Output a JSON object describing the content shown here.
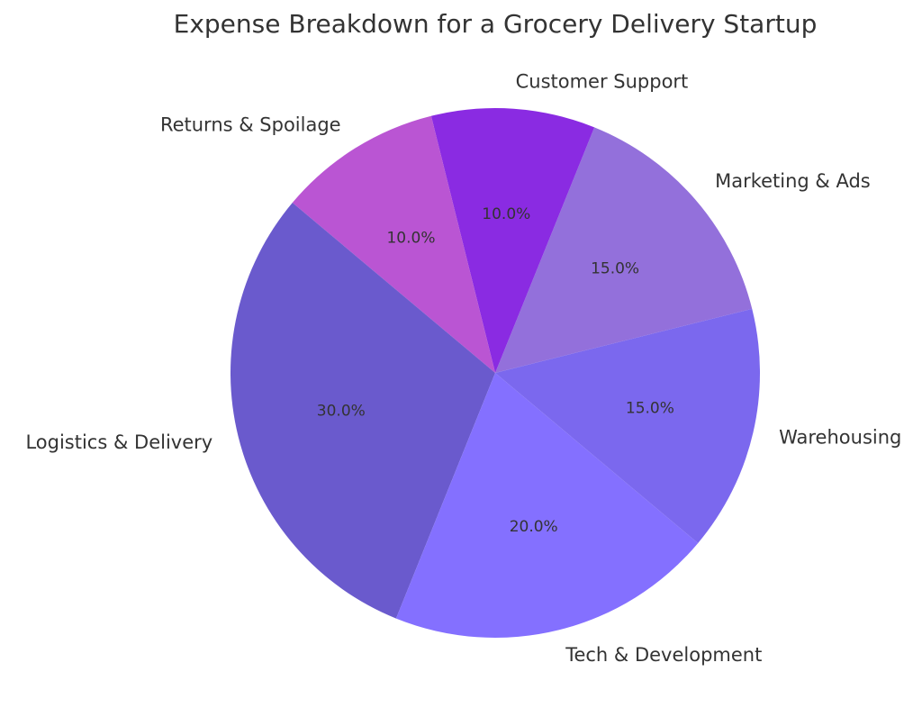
{
  "chart_data": {
    "type": "pie",
    "title": "Expense Breakdown for a Grocery Delivery Startup",
    "categories": [
      "Marketing & Ads",
      "Customer Support",
      "Returns & Spoilage",
      "Logistics & Delivery",
      "Tech & Development",
      "Warehousing"
    ],
    "values": [
      15,
      10,
      10,
      30,
      20,
      15
    ],
    "percent_labels": [
      "15.0%",
      "10.0%",
      "10.0%",
      "30.0%",
      "20.0%",
      "15.0%"
    ],
    "colors": [
      "#9370db",
      "#8a2be2",
      "#ba55d3",
      "#6a5acd",
      "#8470ff",
      "#7b68ee"
    ],
    "start_angle_deg": 14,
    "direction": "counterclockwise",
    "legend": "none"
  }
}
